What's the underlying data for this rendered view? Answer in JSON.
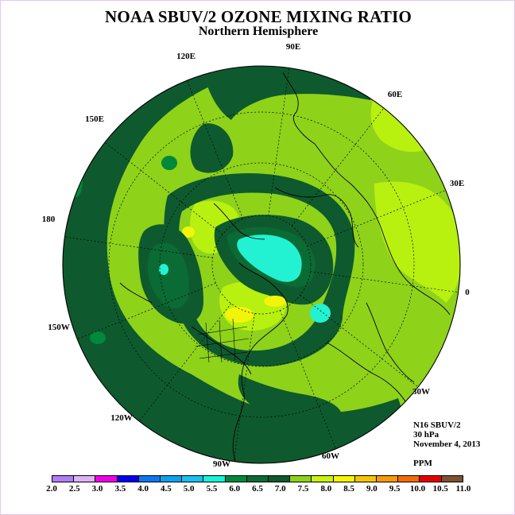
{
  "header": {
    "title": "NOAA SBUV/2 OZONE MIXING RATIO",
    "subtitle": "Northern Hemisphere"
  },
  "map": {
    "projection": "north-polar-stereographic",
    "longitude_labels": [
      "90E",
      "60E",
      "30E",
      "0",
      "30W",
      "60W",
      "90W",
      "120W",
      "150W",
      "180",
      "150E",
      "120E"
    ],
    "colors": {
      "level_6_0": "#00893a",
      "level_6_5": "#0b6b34",
      "level_7_0": "#0e5a2e",
      "level_7_5": "#8ed21a",
      "level_8_0": "#b8f010",
      "level_8_5": "#f2f50a",
      "level_5_5": "#22f2d2",
      "coast": "#000000"
    }
  },
  "info": {
    "instrument": "N16 SBUV/2",
    "level": "30 hPa",
    "date": "November 4, 2013",
    "units": "PPM"
  },
  "colorbar": {
    "colors": [
      "#b07ef5",
      "#deb3f5",
      "#f000e8",
      "#0000ee",
      "#0a77ee",
      "#0aa2ee",
      "#1ac0ee",
      "#1af2d8",
      "#00893a",
      "#0b6b34",
      "#0e5a2e",
      "#8ed21a",
      "#c8f20f",
      "#f5f50a",
      "#f5c40a",
      "#f59a0a",
      "#f56a0a",
      "#e80000",
      "#7c5230"
    ],
    "ticks": [
      "2.0",
      "2.5",
      "3.0",
      "3.5",
      "4.0",
      "4.5",
      "5.0",
      "5.5",
      "6.0",
      "6.5",
      "7.0",
      "7.5",
      "8.0",
      "8.5",
      "9.0",
      "9.5",
      "10.0",
      "10.5",
      "11.0"
    ]
  }
}
